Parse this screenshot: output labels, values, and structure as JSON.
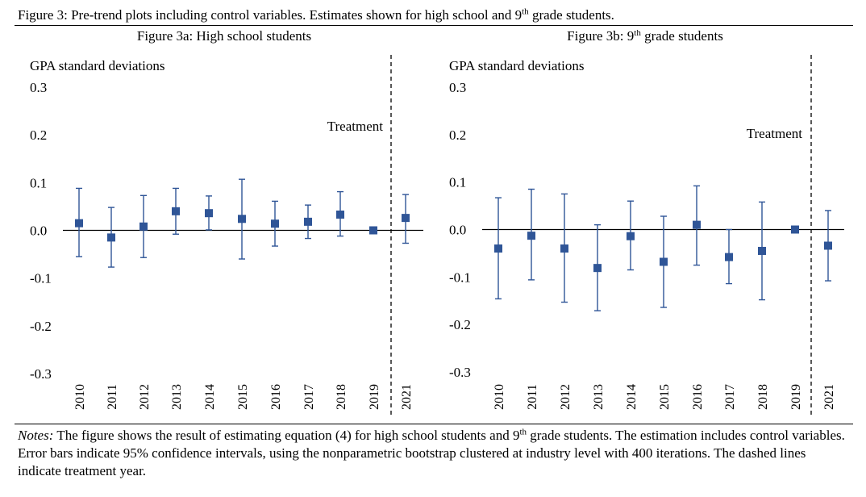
{
  "caption": {
    "text_before": "Figure 3: Pre-trend plots including control variables. Estimates shown for high school and 9",
    "sup": "th",
    "text_after": " grade students."
  },
  "notes": {
    "label": "Notes:",
    "text_1": " The figure shows the result of estimating equation (4) for high school students and 9",
    "sup": "th",
    "text_2": " grade students. The estimation includes control variables. Error bars indicate 95% confidence intervals, using the nonparametric bootstrap clustered at industry level with 400 iterations. The dashed lines indicate treatment year."
  },
  "colors": {
    "marker": "#2f5597",
    "bar": "#2f5597",
    "axis": "#000000"
  },
  "chart_data": [
    {
      "type": "scatter",
      "title": "Figure 3a: High school students",
      "ylabel": "GPA standard deviations",
      "ylim": [
        -0.3,
        0.3
      ],
      "yticks": [
        "0.3",
        "0.2",
        "0.1",
        "0.0",
        "-0.1",
        "-0.2",
        "-0.3"
      ],
      "categories": [
        "2010",
        "2011",
        "2012",
        "2013",
        "2014",
        "2015",
        "2016",
        "2017",
        "2018",
        "2019",
        "2021"
      ],
      "values": [
        0.015,
        -0.015,
        0.008,
        0.04,
        0.036,
        0.024,
        0.014,
        0.018,
        0.033,
        0.0,
        0.026
      ],
      "ci_low": [
        -0.055,
        -0.077,
        -0.057,
        -0.008,
        0.001,
        -0.06,
        -0.033,
        -0.017,
        -0.012,
        0.0,
        -0.027
      ],
      "ci_high": [
        0.088,
        0.048,
        0.073,
        0.088,
        0.072,
        0.107,
        0.061,
        0.053,
        0.081,
        0.0,
        0.075
      ],
      "treatment_between": [
        "2019",
        "2021"
      ],
      "annotation": "Treatment",
      "grid": false
    },
    {
      "type": "scatter",
      "title_before": "Figure 3b: 9",
      "title_sup": "th",
      "title_after": " grade students",
      "ylabel": "GPA standard deviations",
      "ylim": [
        -0.3,
        0.3
      ],
      "yticks": [
        "0.3",
        "0.2",
        "0.1",
        "0.0",
        "-0.1",
        "-0.2",
        "-0.3"
      ],
      "categories": [
        "2010",
        "2011",
        "2012",
        "2013",
        "2014",
        "2015",
        "2016",
        "2017",
        "2018",
        "2019",
        "2021"
      ],
      "values": [
        -0.04,
        -0.013,
        -0.04,
        -0.081,
        -0.014,
        -0.068,
        0.01,
        -0.058,
        -0.045,
        0.0,
        -0.034
      ],
      "ci_low": [
        -0.146,
        -0.106,
        -0.153,
        -0.171,
        -0.085,
        -0.164,
        -0.075,
        -0.114,
        -0.148,
        0.0,
        -0.108
      ],
      "ci_high": [
        0.067,
        0.085,
        0.075,
        0.01,
        0.06,
        0.028,
        0.092,
        0.0,
        0.058,
        0.0,
        0.04
      ],
      "treatment_between": [
        "2019",
        "2021"
      ],
      "annotation": "Treatment",
      "grid": false
    }
  ]
}
